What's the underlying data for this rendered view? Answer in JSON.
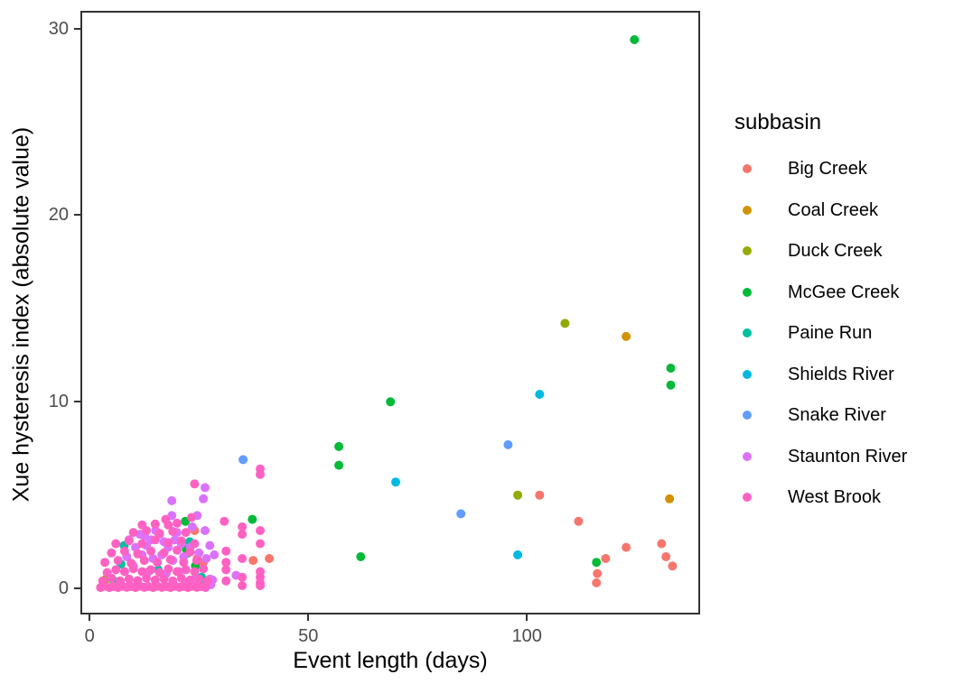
{
  "chart_data": {
    "type": "scatter",
    "title": "",
    "xlabel": "Event length (days)",
    "ylabel": "Xue hysteresis index (absolute value)",
    "legend_title": "subbasin",
    "legend_position": "right",
    "grid": false,
    "xlim": [
      -1.9,
      139.2
    ],
    "ylim": [
      -1.3,
      30.9
    ],
    "x_ticks": [
      0,
      50,
      100
    ],
    "y_ticks": [
      0,
      10,
      20,
      30
    ],
    "tick_label_color": "#4d4d4d",
    "panel_border_color": "#333333",
    "series": [
      {
        "name": "Big Creek",
        "color": "#F8766D",
        "points": [
          [
            24,
            3.1
          ],
          [
            24.6,
            1.6
          ],
          [
            26,
            1.4
          ],
          [
            37.4,
            1.5
          ],
          [
            41.1,
            1.6
          ],
          [
            102.9,
            5.0
          ],
          [
            111.8,
            3.6
          ],
          [
            115.9,
            0.3
          ],
          [
            116.1,
            0.8
          ],
          [
            118,
            1.6
          ],
          [
            122.7,
            2.2
          ],
          [
            130.8,
            2.4
          ],
          [
            131.8,
            1.7
          ],
          [
            133.3,
            1.2
          ]
        ]
      },
      {
        "name": "Coal Creek",
        "color": "#D39200",
        "points": [
          [
            122.7,
            13.5
          ],
          [
            132.6,
            4.8
          ]
        ]
      },
      {
        "name": "Duck Creek",
        "color": "#93AA00",
        "points": [
          [
            3.7,
            0.5
          ],
          [
            97.9,
            5.0
          ],
          [
            108.7,
            14.2
          ]
        ]
      },
      {
        "name": "McGee Creek",
        "color": "#00BA38",
        "points": [
          [
            21.9,
            3.6
          ],
          [
            22.1,
            2.1
          ],
          [
            22.5,
            1.9
          ],
          [
            24.2,
            1.2
          ],
          [
            37.2,
            3.7
          ],
          [
            57,
            7.6
          ],
          [
            57,
            6.6
          ],
          [
            62,
            1.7
          ],
          [
            68.8,
            10.0
          ],
          [
            115.9,
            1.4
          ],
          [
            124.6,
            29.4
          ],
          [
            132.9,
            11.8
          ],
          [
            132.9,
            10.9
          ]
        ]
      },
      {
        "name": "Paine Run",
        "color": "#00C19F",
        "points": [
          [
            5.5,
            0.4
          ],
          [
            7.2,
            1.3
          ],
          [
            7.9,
            2.3
          ],
          [
            11,
            0.2
          ],
          [
            15.7,
            1.0
          ],
          [
            22.9,
            2.5
          ],
          [
            25.6,
            0.6
          ],
          [
            25.6,
            0.3
          ]
        ]
      },
      {
        "name": "Shields River",
        "color": "#00B9E3",
        "points": [
          [
            70,
            5.7
          ],
          [
            97.9,
            1.8
          ],
          [
            102.9,
            10.4
          ]
        ]
      },
      {
        "name": "Snake River",
        "color": "#619CFF",
        "points": [
          [
            35.1,
            6.9
          ],
          [
            84.9,
            4.0
          ],
          [
            95.7,
            7.7
          ]
        ]
      },
      {
        "name": "Staunton River",
        "color": "#DB72FB",
        "points": [
          [
            18.8,
            4.7
          ],
          [
            18.8,
            3.9
          ],
          [
            24.6,
            3.9
          ],
          [
            26,
            4.8
          ],
          [
            26.4,
            5.4
          ],
          [
            26.4,
            3.1
          ],
          [
            26.7,
            1.6
          ],
          [
            27.5,
            2.3
          ],
          [
            27.5,
            0.5
          ],
          [
            27.7,
            0.2
          ],
          [
            28.1,
            0.45
          ],
          [
            28.5,
            1.8
          ],
          [
            33.5,
            0.7
          ],
          [
            8.5,
            1.7
          ],
          [
            9,
            2.6
          ],
          [
            10,
            1.2
          ],
          [
            10.5,
            2.2
          ],
          [
            11,
            0.4
          ],
          [
            11.5,
            2.9
          ],
          [
            12,
            1.8
          ],
          [
            12.6,
            2.8
          ],
          [
            13,
            2.3
          ],
          [
            13.5,
            0.9
          ],
          [
            14,
            2.6
          ],
          [
            14.5,
            1.6
          ],
          [
            15,
            0.15
          ],
          [
            15.1,
            3.1
          ],
          [
            16,
            2.9
          ],
          [
            16.5,
            1.8
          ],
          [
            17,
            2.5
          ],
          [
            17.5,
            0.8
          ],
          [
            18,
            2.2
          ],
          [
            19,
            1.5
          ],
          [
            19.5,
            2.6
          ],
          [
            20,
            3.0
          ],
          [
            20.5,
            0.9
          ],
          [
            21,
            2.4
          ],
          [
            21.5,
            1.7
          ],
          [
            22,
            0.3
          ],
          [
            23,
            2.2
          ],
          [
            23.5,
            3.3
          ],
          [
            24,
            0.5
          ],
          [
            25,
            1.9
          ]
        ]
      },
      {
        "name": "West Brook",
        "color": "#FF61C3",
        "points": [
          [
            17.4,
            3.7
          ],
          [
            23.3,
            3.8
          ],
          [
            24,
            5.6
          ],
          [
            30.8,
            3.6
          ],
          [
            31.2,
            2.0
          ],
          [
            31.2,
            1.4
          ],
          [
            31.2,
            1.0
          ],
          [
            31.2,
            0.4
          ],
          [
            34.9,
            3.3
          ],
          [
            34.9,
            2.9
          ],
          [
            34.9,
            1.6
          ],
          [
            34.9,
            0.6
          ],
          [
            34.9,
            0.15
          ],
          [
            39,
            6.4
          ],
          [
            39,
            6.1
          ],
          [
            39,
            3.1
          ],
          [
            39,
            2.4
          ],
          [
            39,
            0.9
          ],
          [
            39,
            0.6
          ],
          [
            39,
            0.3
          ],
          [
            39,
            0.15
          ],
          [
            2.5,
            0.05
          ],
          [
            3.5,
            0.12
          ],
          [
            4.5,
            0.05
          ],
          [
            5.5,
            0.1
          ],
          [
            6.5,
            0.05
          ],
          [
            7.5,
            0.12
          ],
          [
            8.5,
            0.06
          ],
          [
            9.5,
            0.1
          ],
          [
            10.5,
            0.05
          ],
          [
            11.5,
            0.12
          ],
          [
            12.5,
            0.06
          ],
          [
            13.5,
            0.1
          ],
          [
            14.5,
            0.05
          ],
          [
            15.5,
            0.12
          ],
          [
            16.5,
            0.06
          ],
          [
            17.5,
            0.1
          ],
          [
            18.5,
            0.05
          ],
          [
            19.5,
            0.12
          ],
          [
            20.5,
            0.06
          ],
          [
            21.5,
            0.1
          ],
          [
            22.5,
            0.05
          ],
          [
            23.5,
            0.12
          ],
          [
            24.5,
            0.06
          ],
          [
            25.5,
            0.1
          ],
          [
            26.5,
            0.05
          ],
          [
            3,
            0.4
          ],
          [
            5,
            0.55
          ],
          [
            7,
            0.4
          ],
          [
            9,
            0.5
          ],
          [
            11,
            0.42
          ],
          [
            13,
            0.55
          ],
          [
            15,
            0.45
          ],
          [
            17,
            0.5
          ],
          [
            19,
            0.4
          ],
          [
            21,
            0.55
          ],
          [
            23,
            0.45
          ],
          [
            25,
            0.5
          ],
          [
            27,
            0.4
          ],
          [
            4,
            0.85
          ],
          [
            6,
            1.0
          ],
          [
            8,
            0.9
          ],
          [
            10,
            1.05
          ],
          [
            12,
            0.9
          ],
          [
            14,
            1.0
          ],
          [
            16,
            0.85
          ],
          [
            18,
            1.05
          ],
          [
            20,
            0.9
          ],
          [
            22,
            1.0
          ],
          [
            24,
            0.9
          ],
          [
            26,
            1.05
          ],
          [
            3.5,
            1.4
          ],
          [
            6.5,
            1.5
          ],
          [
            9.5,
            1.35
          ],
          [
            12.5,
            1.5
          ],
          [
            15.5,
            1.4
          ],
          [
            18.5,
            1.55
          ],
          [
            21.5,
            1.4
          ],
          [
            24.5,
            1.5
          ],
          [
            5,
            1.9
          ],
          [
            8,
            2.0
          ],
          [
            11,
            1.85
          ],
          [
            14,
            2.0
          ],
          [
            17,
            1.9
          ],
          [
            20,
            2.05
          ],
          [
            23,
            1.95
          ],
          [
            6,
            2.4
          ],
          [
            9,
            2.55
          ],
          [
            12,
            2.4
          ],
          [
            15,
            2.6
          ],
          [
            18,
            2.45
          ],
          [
            21,
            2.55
          ],
          [
            24,
            2.4
          ],
          [
            10,
            3.0
          ],
          [
            13,
            3.1
          ],
          [
            16,
            2.95
          ],
          [
            19,
            3.05
          ],
          [
            22,
            3.0
          ],
          [
            12,
            3.4
          ],
          [
            15,
            3.45
          ],
          [
            18,
            3.4
          ],
          [
            20,
            3.5
          ]
        ]
      }
    ]
  }
}
